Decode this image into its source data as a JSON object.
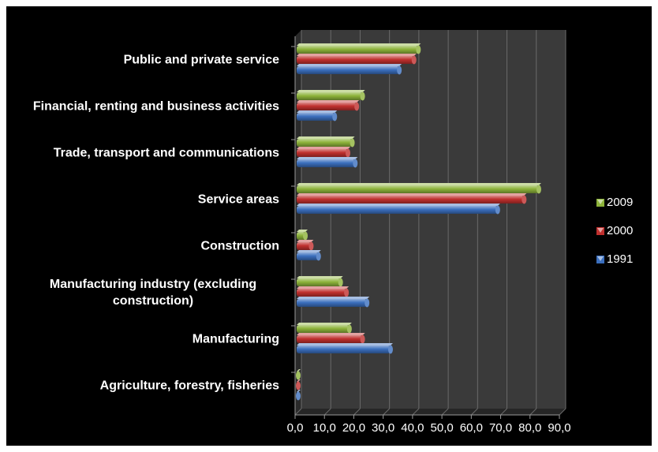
{
  "chart_data": {
    "type": "bar",
    "orientation": "horizontal",
    "categories": [
      "Public and private service",
      "Financial, renting and business activities",
      "Trade, transport and communications",
      "Service areas",
      "Construction",
      "Manufacturing industry (excluding construction)",
      "Manufacturing",
      "Agriculture, forestry, fisheries"
    ],
    "series": [
      {
        "name": "2009",
        "color": "#8db33a",
        "values": [
          42.0,
          23.0,
          19.5,
          83.0,
          3.5,
          15.5,
          18.5,
          1.0
        ]
      },
      {
        "name": "2000",
        "color": "#c0302e",
        "values": [
          40.5,
          21.0,
          18.0,
          78.0,
          5.5,
          17.5,
          23.0,
          0.8
        ]
      },
      {
        "name": "1991",
        "color": "#3b6fbe",
        "values": [
          35.5,
          13.5,
          20.5,
          69.0,
          8.0,
          24.5,
          32.5,
          0.5
        ]
      }
    ],
    "xticks": [
      "0,0",
      "10,0",
      "20,0",
      "30,0",
      "40,0",
      "50,0",
      "60,0",
      "70,0",
      "80,0",
      "90,0"
    ],
    "xlim": [
      0,
      90
    ],
    "title": "",
    "xlabel": "",
    "ylabel": "",
    "grid": true,
    "legend_position": "right",
    "background": "#000000",
    "wall_color": "#3a3a3a"
  }
}
